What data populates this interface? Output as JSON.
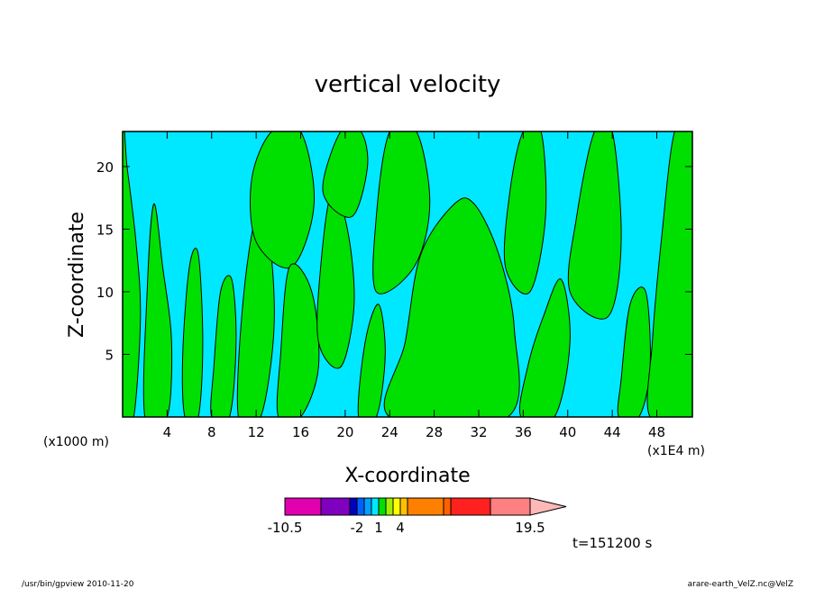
{
  "chart_data": {
    "type": "heatmap",
    "title": "vertical velocity",
    "xlabel": "X-coordinate",
    "ylabel": "Z-coordinate",
    "x_units_left": "(x1000 m)",
    "x_units_right": "(x1E4 m)",
    "x_ticks": [
      "4",
      "8",
      "12",
      "16",
      "20",
      "24",
      "28",
      "32",
      "36",
      "40",
      "44",
      "48"
    ],
    "y_ticks": [
      "5",
      "10",
      "15",
      "20"
    ],
    "xlim": [
      0,
      51.2
    ],
    "ylim": [
      0,
      22.8
    ],
    "time_label": "t=151200 s",
    "colorbar": {
      "colors": [
        "#e000b0",
        "#8000c0",
        "#0000c0",
        "#0060ff",
        "#00a0ff",
        "#00e8ff",
        "#00e000",
        "#a0f000",
        "#ffff00",
        "#ffc000",
        "#ff8000",
        "#ff6000",
        "#ff2020",
        "#ff8080"
      ],
      "extend_color": "#ffb8b8",
      "labels": [
        "-10.5",
        "-2",
        "1",
        "4",
        "19.5"
      ],
      "label_values": [
        -10.5,
        -2,
        1,
        4,
        19.5
      ]
    },
    "field_colors": {
      "negative": "#00e8ff",
      "positive": "#00e000"
    },
    "positive_regions": [
      {
        "x": [
          0,
          1.0,
          1.6,
          1.2,
          0.4,
          0
        ],
        "z": [
          0,
          0,
          8,
          14,
          20,
          22.8
        ]
      },
      {
        "x": [
          2.0,
          4.0,
          4.4,
          3.6,
          2.8,
          2.2
        ],
        "z": [
          0,
          0,
          6,
          12,
          17,
          10
        ]
      },
      {
        "x": [
          5.6,
          6.8,
          7.2,
          6.8,
          6.0,
          5.4
        ],
        "z": [
          0,
          0,
          6,
          13,
          12,
          5
        ]
      },
      {
        "x": [
          8.0,
          9.6,
          10.2,
          9.8,
          8.8,
          8.2
        ],
        "z": [
          0,
          0,
          6,
          11,
          10,
          4
        ]
      },
      {
        "x": [
          10.4,
          12.4,
          13.6,
          13.2,
          12.0,
          10.8
        ],
        "z": [
          0,
          0,
          7,
          14,
          16,
          9
        ]
      },
      {
        "x": [
          12.0,
          15.2,
          17.2,
          16.0,
          13.4,
          11.6
        ],
        "z": [
          14,
          12,
          17,
          22.8,
          22.8,
          19
        ]
      },
      {
        "x": [
          14.0,
          16.0,
          17.6,
          17.0,
          15.0,
          14.2
        ],
        "z": [
          0,
          0,
          4,
          10,
          12,
          5
        ]
      },
      {
        "x": [
          17.6,
          19.6,
          20.8,
          20.2,
          18.8,
          17.8
        ],
        "z": [
          6,
          4,
          9,
          15,
          18,
          12
        ]
      },
      {
        "x": [
          18.0,
          20.6,
          22.0,
          21.4,
          19.6
        ],
        "z": [
          18,
          16,
          20,
          22.8,
          22.8
        ]
      },
      {
        "x": [
          21.2,
          22.8,
          23.6,
          23.0,
          21.8
        ],
        "z": [
          0,
          0,
          5,
          9,
          6
        ]
      },
      {
        "x": [
          22.8,
          26.2,
          27.6,
          26.4,
          24.0,
          22.8
        ],
        "z": [
          10,
          12,
          17,
          22.8,
          22.8,
          16
        ]
      },
      {
        "x": [
          24.0,
          34.6,
          35.2,
          33.8,
          31.6,
          29.8,
          26.8,
          25.4
        ],
        "z": [
          0,
          0,
          7,
          13,
          17,
          17,
          13,
          6
        ]
      },
      {
        "x": [
          34.4,
          36.6,
          38.0,
          37.6,
          36.0,
          34.8
        ],
        "z": [
          12,
          10,
          16,
          22.8,
          22.8,
          18
        ]
      },
      {
        "x": [
          35.8,
          38.8,
          40.2,
          39.4,
          37.8,
          36.4
        ],
        "z": [
          0,
          0,
          6,
          11,
          8,
          4
        ]
      },
      {
        "x": [
          40.2,
          43.6,
          44.8,
          44.0,
          42.4,
          40.8
        ],
        "z": [
          10,
          8,
          14,
          22.8,
          22.8,
          16
        ]
      },
      {
        "x": [
          44.6,
          46.4,
          47.4,
          47.0,
          45.6,
          44.8
        ],
        "z": [
          0,
          0,
          4,
          10,
          9,
          3
        ]
      },
      {
        "x": [
          47.4,
          51.2,
          51.2,
          49.6,
          48.4,
          47.6
        ],
        "z": [
          0,
          0,
          22.8,
          22.8,
          14,
          6
        ]
      }
    ],
    "footer_left": "/usr/bin/gpview   2010-11-20",
    "footer_right": "arare-earth_VelZ.nc@VelZ"
  }
}
